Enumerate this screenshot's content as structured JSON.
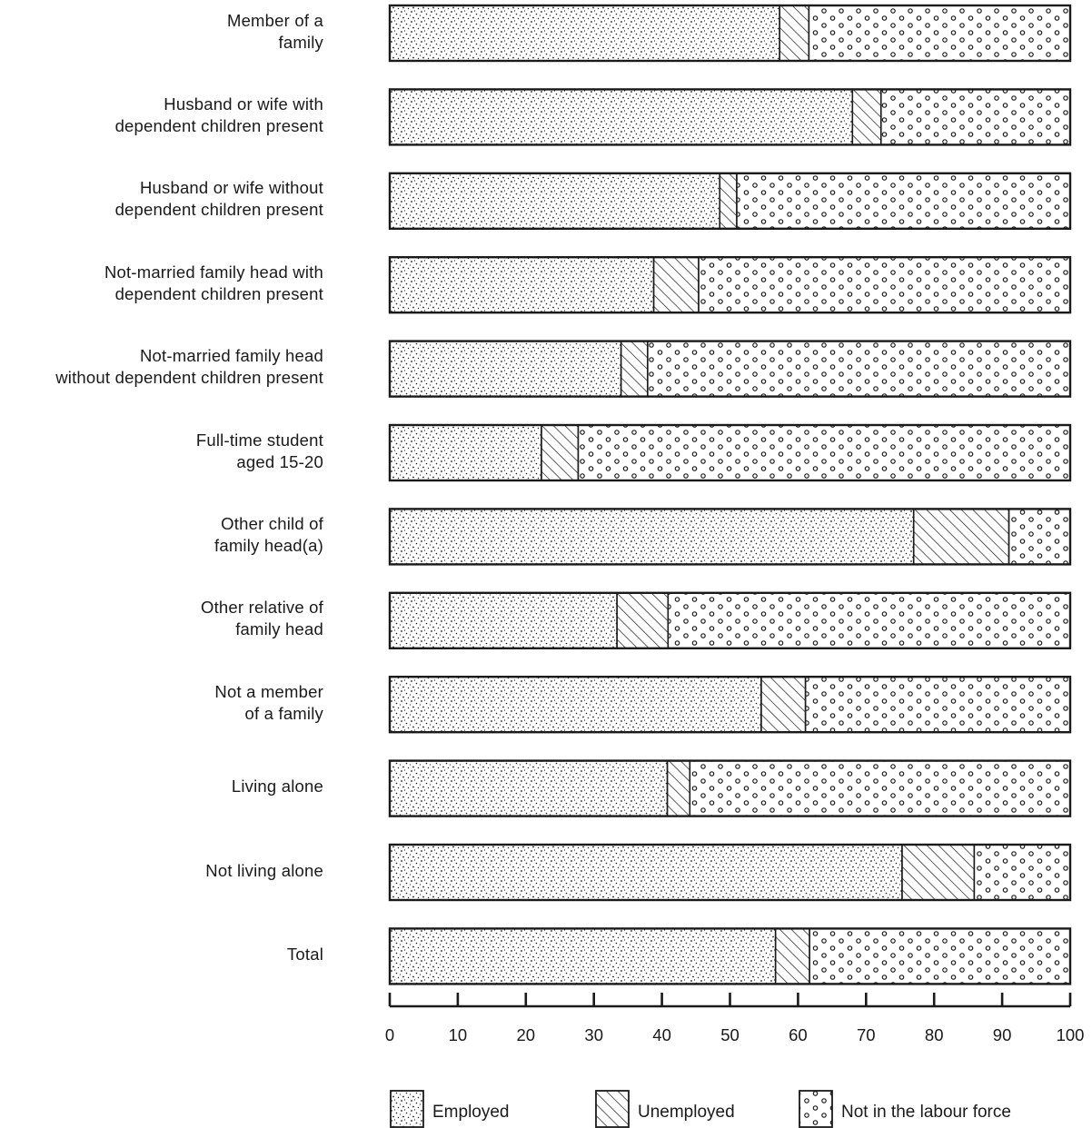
{
  "chart_data": {
    "type": "bar",
    "orientation": "horizontal",
    "stacked": true,
    "categories": [
      "Member of a\nfamily",
      "Husband or wife with\ndependent children present",
      "Husband or wife without\ndependent children present",
      "Not-married family head with\ndependent children present",
      "Not-married family head\nwithout dependent children present",
      "Full-time student\naged 15-20",
      "Other child of\nfamily head(a)",
      "Other relative of\nfamily head",
      "Not a member\nof a family",
      "Living alone",
      "Not living alone",
      "Total"
    ],
    "series": [
      {
        "name": "Employed",
        "values": [
          57.3,
          68.0,
          48.5,
          38.8,
          34.0,
          22.3,
          77.0,
          33.4,
          54.6,
          40.8,
          75.3,
          56.7
        ]
      },
      {
        "name": "Unemployed",
        "values": [
          4.3,
          4.2,
          2.5,
          6.6,
          3.9,
          5.4,
          14.0,
          7.5,
          6.5,
          3.3,
          10.6,
          5.0
        ]
      },
      {
        "name": "Not in the labour force",
        "values": [
          38.4,
          27.8,
          49.0,
          54.6,
          62.1,
          72.3,
          9.0,
          59.1,
          38.9,
          55.9,
          14.1,
          38.3
        ]
      }
    ],
    "xlim": [
      0,
      100
    ],
    "xticks": [
      0,
      10,
      20,
      30,
      40,
      50,
      60,
      70,
      80,
      90,
      100
    ],
    "title": "",
    "xlabel": "",
    "ylabel": "",
    "legend_position": "bottom",
    "colors": {
      "ink": "#1a1a1a",
      "background": "#ffffff"
    }
  }
}
